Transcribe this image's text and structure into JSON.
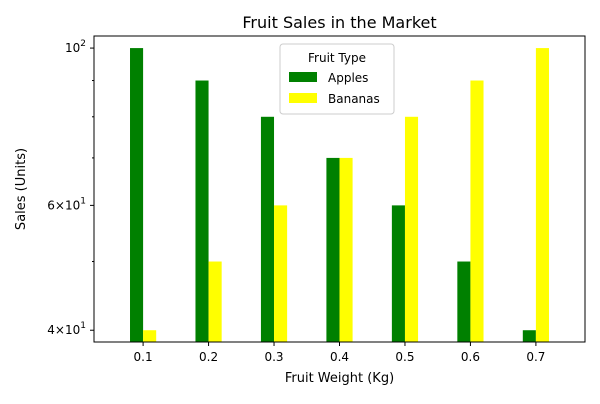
{
  "chart_data": {
    "type": "bar",
    "title": "Fruit Sales in the Market",
    "xlabel": "Fruit Weight (Kg)",
    "ylabel": "Sales (Units)",
    "yscale": "log",
    "ylim": [
      38.5,
      104
    ],
    "categories": [
      "0.1",
      "0.2",
      "0.3",
      "0.4",
      "0.5",
      "0.6",
      "0.7"
    ],
    "series": [
      {
        "name": "Apples",
        "color": "#008000",
        "values": [
          100,
          90,
          80,
          70,
          60,
          50,
          40
        ]
      },
      {
        "name": "Bananas",
        "color": "#ffff00",
        "values": [
          40,
          50,
          60,
          70,
          80,
          90,
          100
        ]
      }
    ],
    "y_major_ticks": [
      {
        "value": 40,
        "mantissa": "4",
        "base": "10",
        "exp": "1"
      },
      {
        "value": 60,
        "mantissa": "6",
        "base": "10",
        "exp": "1"
      },
      {
        "value": 100,
        "mantissa": "",
        "base": "10",
        "exp": "2"
      }
    ],
    "y_minor_ticks": [
      50,
      70,
      80,
      90
    ],
    "legend": {
      "title": "Fruit Type",
      "position": "upper center"
    },
    "grid": false
  }
}
